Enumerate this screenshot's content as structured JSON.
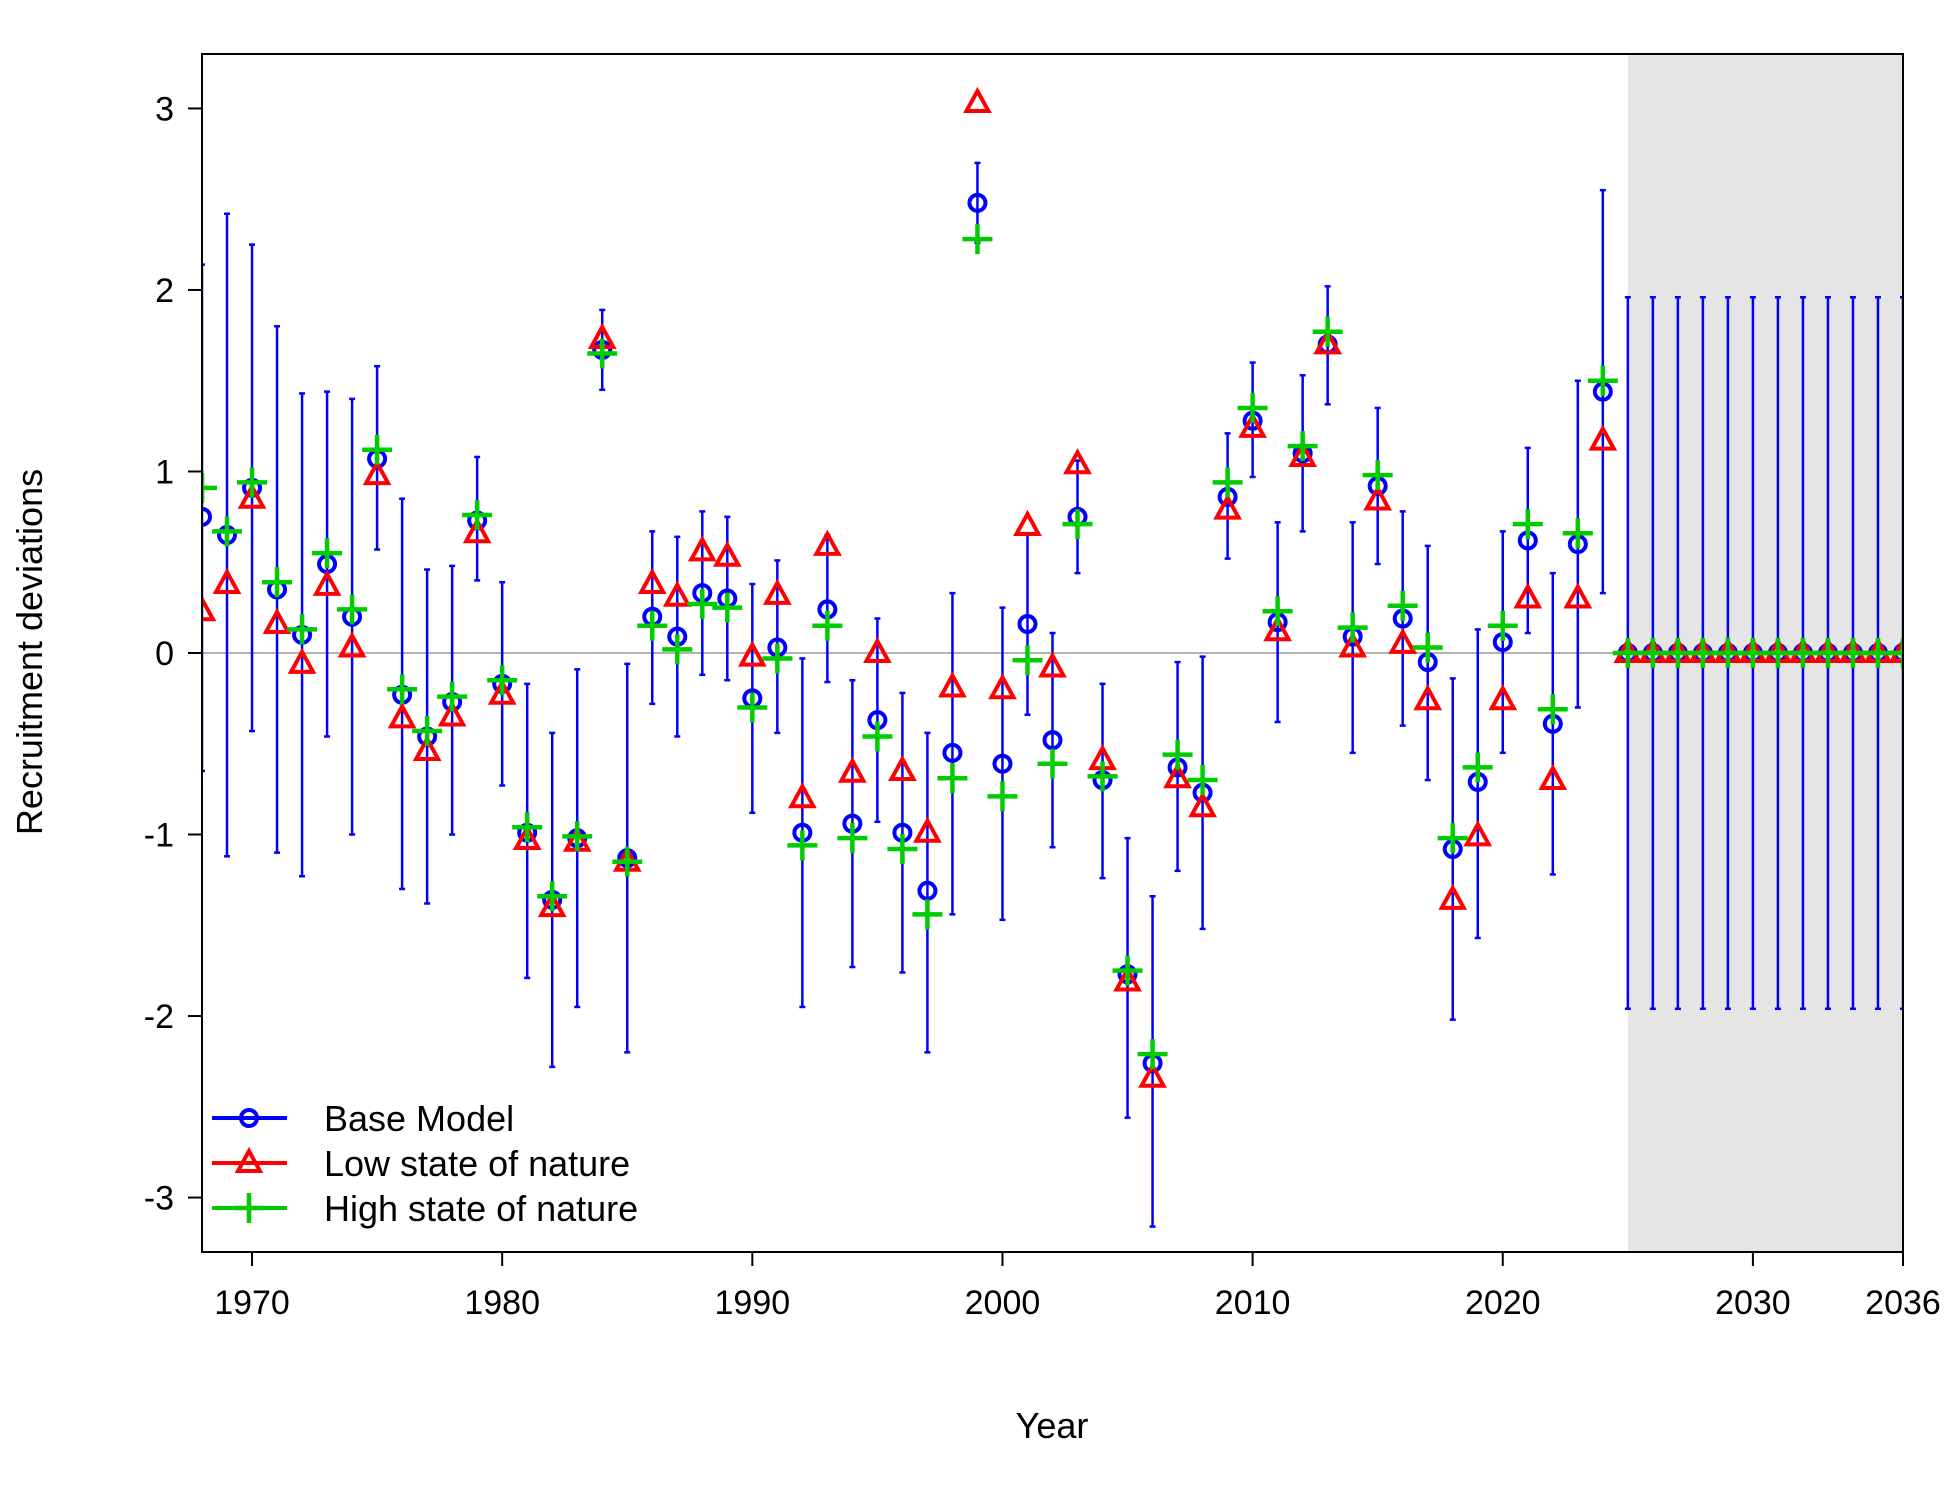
{
  "chart_data": {
    "type": "scatter",
    "xlabel": "Year",
    "ylabel": "Recruitment deviations",
    "xlim": [
      1968,
      2036
    ],
    "ylim": [
      -3.3,
      3.3
    ],
    "x_ticks": [
      1970,
      1980,
      1990,
      2000,
      2010,
      2020,
      2030,
      2036
    ],
    "y_ticks": [
      -3,
      -2,
      -1,
      0,
      1,
      2,
      3
    ],
    "reference_line": 0,
    "forecast_shading": [
      2025,
      2036
    ],
    "grid": false,
    "legend_position": "bottom-left",
    "colors": {
      "base": "#0000ff",
      "low": "#ff0000",
      "high": "#00cc00",
      "shade": "#e5e5e5",
      "ref": "#b3b3b3"
    },
    "legend": [
      "Base Model",
      "Low state of nature",
      "High state of nature"
    ],
    "years": [
      1968,
      1969,
      1970,
      1971,
      1972,
      1973,
      1974,
      1975,
      1976,
      1977,
      1978,
      1979,
      1980,
      1981,
      1982,
      1983,
      1984,
      1985,
      1986,
      1987,
      1988,
      1989,
      1990,
      1991,
      1992,
      1993,
      1994,
      1995,
      1996,
      1997,
      1998,
      1999,
      2000,
      2001,
      2002,
      2003,
      2004,
      2005,
      2006,
      2007,
      2008,
      2009,
      2010,
      2011,
      2012,
      2013,
      2014,
      2015,
      2016,
      2017,
      2018,
      2019,
      2020,
      2021,
      2022,
      2023,
      2024,
      2025,
      2026,
      2027,
      2028,
      2029,
      2030,
      2031,
      2032,
      2033,
      2034,
      2035,
      2036
    ],
    "series": [
      {
        "name": "Base Model",
        "marker": "circle",
        "values": [
          0.75,
          0.65,
          0.91,
          0.35,
          0.1,
          0.49,
          0.2,
          1.07,
          -0.23,
          -0.46,
          -0.27,
          0.73,
          -0.17,
          -0.99,
          -1.36,
          -1.02,
          1.67,
          -1.13,
          0.2,
          0.09,
          0.33,
          0.3,
          -0.25,
          0.03,
          -0.99,
          0.24,
          -0.94,
          -0.37,
          -0.99,
          -1.31,
          -0.55,
          2.48,
          -0.61,
          0.16,
          -0.48,
          0.75,
          -0.7,
          -1.77,
          -2.26,
          -0.63,
          -0.77,
          0.86,
          1.28,
          0.17,
          1.1,
          1.7,
          0.09,
          0.92,
          0.19,
          -0.05,
          -1.08,
          -0.71,
          0.06,
          0.62,
          -0.39,
          0.6,
          1.44,
          0,
          0,
          0,
          0,
          0,
          0,
          0,
          0,
          0,
          0,
          0,
          0
        ],
        "lower": [
          -0.65,
          -1.12,
          -0.43,
          -1.1,
          -1.23,
          -0.46,
          -1.0,
          0.57,
          -1.3,
          -1.38,
          -1.0,
          0.4,
          -0.73,
          -1.79,
          -2.28,
          -1.95,
          1.45,
          -2.2,
          -0.28,
          -0.46,
          -0.12,
          -0.15,
          -0.88,
          -0.44,
          -1.95,
          -0.16,
          -1.73,
          -0.93,
          -1.76,
          -2.2,
          -1.44,
          2.26,
          -1.47,
          -0.34,
          -1.07,
          0.44,
          -1.24,
          -2.56,
          -3.16,
          -1.2,
          -1.52,
          0.52,
          0.97,
          -0.38,
          0.67,
          1.37,
          -0.55,
          0.49,
          -0.4,
          -0.7,
          -2.02,
          -1.57,
          -0.55,
          0.11,
          -1.22,
          -0.3,
          0.33,
          -1.96,
          -1.96,
          -1.96,
          -1.96,
          -1.96,
          -1.96,
          -1.96,
          -1.96,
          -1.96,
          -1.96,
          -1.96,
          -1.96
        ],
        "upper": [
          2.14,
          2.42,
          2.25,
          1.8,
          1.43,
          1.44,
          1.4,
          1.58,
          0.85,
          0.46,
          0.48,
          1.08,
          0.39,
          -0.17,
          -0.44,
          -0.09,
          1.89,
          -0.06,
          0.67,
          0.64,
          0.78,
          0.75,
          0.38,
          0.51,
          -0.03,
          0.65,
          -0.15,
          0.19,
          -0.22,
          -0.44,
          0.33,
          2.7,
          0.25,
          0.66,
          0.11,
          1.06,
          -0.17,
          -1.02,
          -1.34,
          -0.05,
          -0.02,
          1.21,
          1.6,
          0.72,
          1.53,
          2.02,
          0.72,
          1.35,
          0.78,
          0.59,
          -0.14,
          0.13,
          0.67,
          1.13,
          0.44,
          1.5,
          2.55,
          1.96,
          1.96,
          1.96,
          1.96,
          1.96,
          1.96,
          1.96,
          1.96,
          1.96,
          1.96,
          1.96,
          1.96
        ]
      },
      {
        "name": "Low state of nature",
        "marker": "triangle",
        "values": [
          0.23,
          0.38,
          0.85,
          0.16,
          -0.06,
          0.37,
          0.03,
          0.98,
          -0.36,
          -0.54,
          -0.35,
          0.66,
          -0.23,
          -1.03,
          -1.4,
          -1.04,
          1.73,
          -1.15,
          0.38,
          0.31,
          0.56,
          0.53,
          -0.02,
          0.32,
          -0.8,
          0.59,
          -0.66,
          0.0,
          -0.65,
          -0.99,
          -0.19,
          3.03,
          -0.2,
          0.7,
          -0.08,
          1.04,
          -0.59,
          -1.81,
          -2.34,
          -0.69,
          -0.85,
          0.79,
          1.24,
          0.12,
          1.08,
          1.7,
          0.03,
          0.84,
          0.05,
          -0.26,
          -1.36,
          -1.01,
          -0.26,
          0.3,
          -0.7,
          0.3,
          1.17,
          0,
          0,
          0,
          0,
          0,
          0,
          0,
          0,
          0,
          0,
          0,
          0
        ]
      },
      {
        "name": "High state of nature",
        "marker": "plus",
        "values": [
          0.91,
          0.67,
          0.94,
          0.39,
          0.13,
          0.55,
          0.24,
          1.12,
          -0.2,
          -0.43,
          -0.24,
          0.76,
          -0.15,
          -0.96,
          -1.34,
          -1.01,
          1.65,
          -1.15,
          0.15,
          0.02,
          0.27,
          0.25,
          -0.3,
          -0.03,
          -1.06,
          0.15,
          -1.02,
          -0.46,
          -1.08,
          -1.44,
          -0.69,
          2.28,
          -0.79,
          -0.04,
          -0.61,
          0.71,
          -0.68,
          -1.75,
          -2.21,
          -0.56,
          -0.7,
          0.94,
          1.35,
          0.23,
          1.14,
          1.77,
          0.14,
          0.98,
          0.26,
          0.03,
          -1.02,
          -0.63,
          0.15,
          0.71,
          -0.31,
          0.66,
          1.5,
          0,
          0,
          0,
          0,
          0,
          0,
          0,
          0,
          0,
          0,
          0,
          0
        ]
      }
    ]
  }
}
